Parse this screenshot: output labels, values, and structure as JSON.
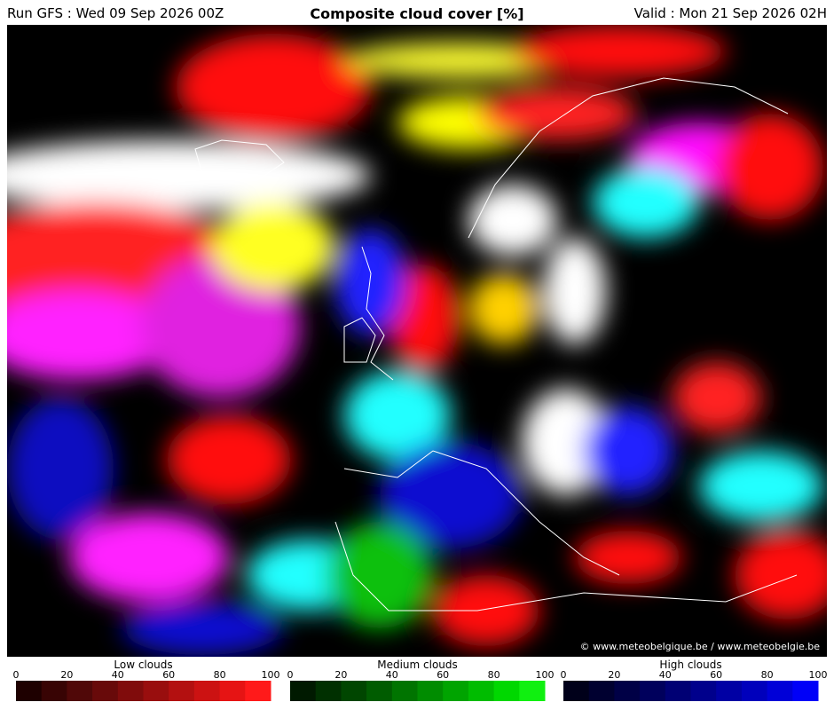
{
  "header": {
    "run": "Run GFS : Wed 09 Sep 2026 00Z",
    "title": "Composite cloud cover [%]",
    "valid": "Valid : Mon 21 Sep 2026 02H"
  },
  "credit": "© www.meteobelgique.be / www.meteobelgie.be",
  "legends": [
    {
      "title": "Low clouds",
      "ticks": [
        0,
        20,
        40,
        60,
        80,
        100
      ],
      "colors": [
        "#1e0000",
        "#380404",
        "#500808",
        "#680a0a",
        "#800c0c",
        "#990e0e",
        "#b31010",
        "#cc1212",
        "#e61414",
        "#ff1a1a"
      ]
    },
    {
      "title": "Medium clouds",
      "ticks": [
        0,
        20,
        40,
        60,
        80,
        100
      ],
      "colors": [
        "#001a00",
        "#003000",
        "#004600",
        "#005c00",
        "#007400",
        "#008c00",
        "#00a400",
        "#00bc00",
        "#00d800",
        "#10f010"
      ]
    },
    {
      "title": "High clouds",
      "ticks": [
        0,
        20,
        40,
        60,
        80,
        100
      ],
      "colors": [
        "#00001a",
        "#000030",
        "#000046",
        "#00005c",
        "#000074",
        "#00008c",
        "#0000a4",
        "#0000bc",
        "#0000d8",
        "#0000f8"
      ]
    }
  ]
}
